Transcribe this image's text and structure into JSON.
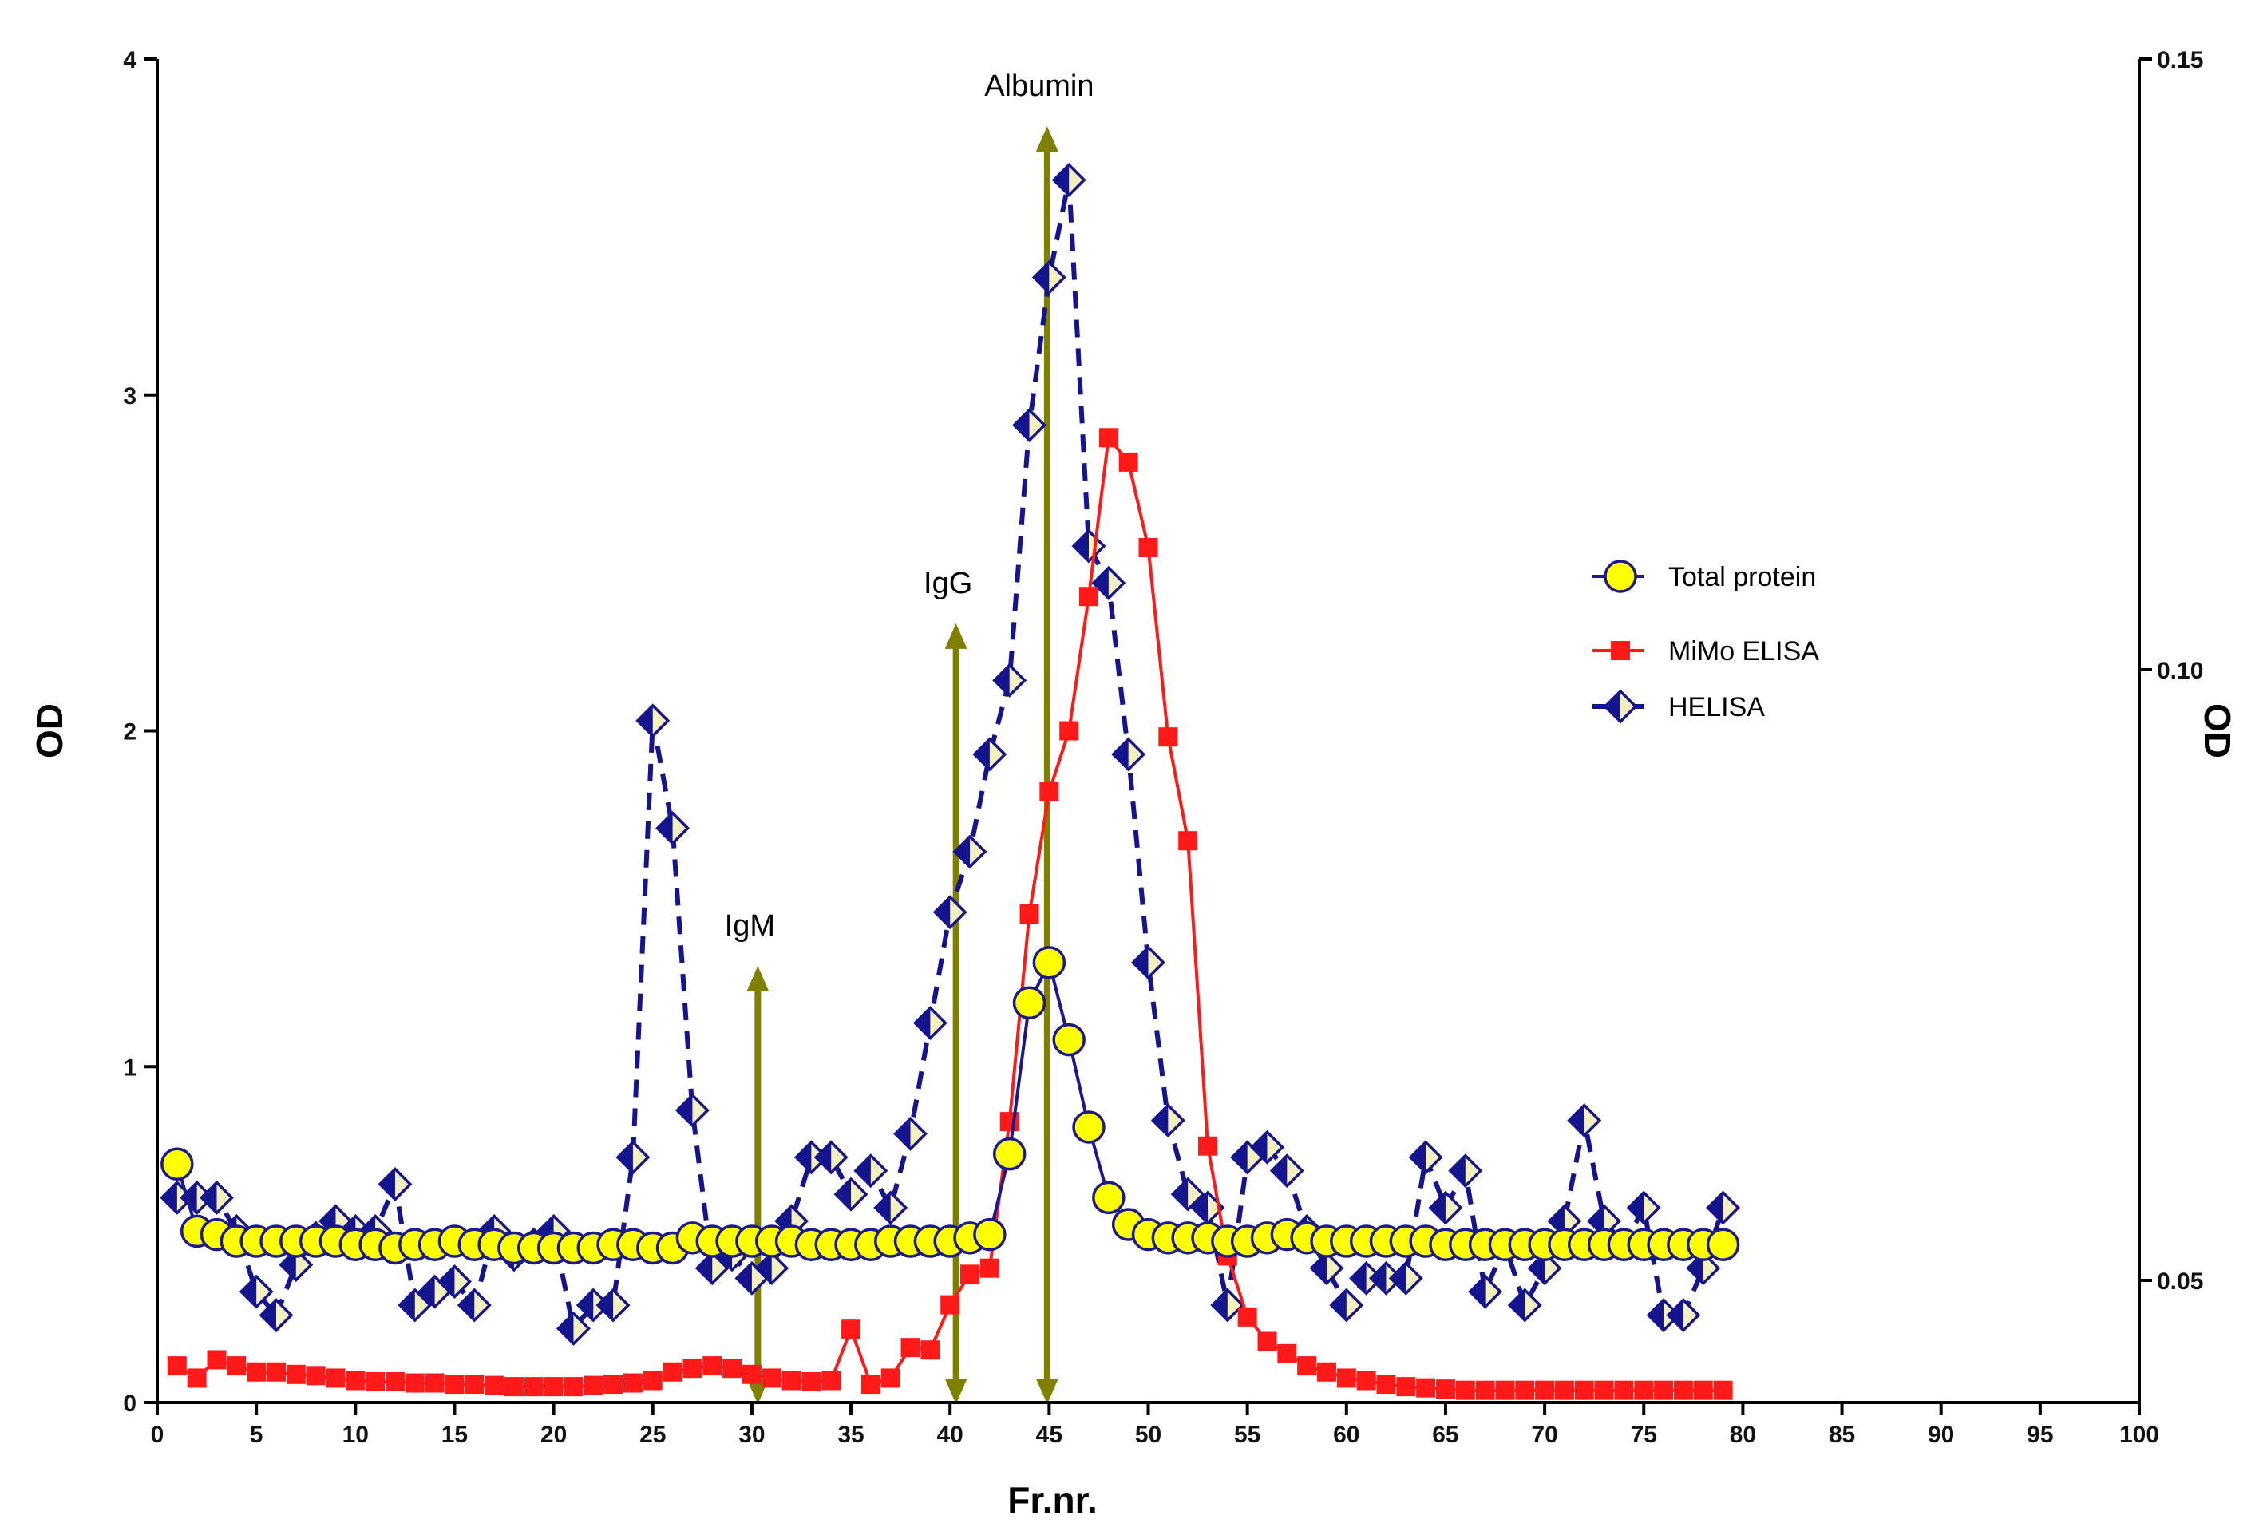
{
  "chart_data": {
    "type": "line",
    "title": "",
    "xlabel": "Fr.nr.",
    "ylabel": "OD",
    "y2label": "OD",
    "xlim": [
      0,
      100
    ],
    "ylim": [
      0,
      4
    ],
    "y2lim": [
      0.04,
      0.15
    ],
    "x_ticks": [
      0,
      5,
      10,
      15,
      20,
      25,
      30,
      35,
      40,
      45,
      50,
      55,
      60,
      65,
      70,
      75,
      80,
      85,
      90,
      95,
      100
    ],
    "y_ticks": [
      0,
      1,
      2,
      3,
      4
    ],
    "y2_ticks": [
      0.05,
      0.1,
      0.15
    ],
    "y2_tick_labels": [
      "0.05",
      "0.10",
      "0.15"
    ],
    "legend_position": "right-middle",
    "series": [
      {
        "name": "Total protein",
        "axis": "left",
        "color": "#ffff00",
        "edge_color": "#1a1a8c",
        "marker": "circle",
        "line": "solid",
        "x": [
          1,
          2,
          3,
          4,
          5,
          6,
          7,
          8,
          9,
          10,
          11,
          12,
          13,
          14,
          15,
          16,
          17,
          18,
          19,
          20,
          21,
          22,
          23,
          24,
          25,
          26,
          27,
          28,
          29,
          30,
          31,
          32,
          33,
          34,
          35,
          36,
          37,
          38,
          39,
          40,
          41,
          42,
          43,
          44,
          45,
          46,
          47,
          48,
          49,
          50,
          51,
          52,
          53,
          54,
          55,
          56,
          57,
          58,
          59,
          60,
          61,
          62,
          63,
          64,
          65,
          66,
          67,
          68,
          69,
          70,
          71,
          72,
          73,
          74,
          75,
          76,
          77,
          78,
          79
        ],
        "values": [
          0.71,
          0.51,
          0.5,
          0.48,
          0.48,
          0.48,
          0.48,
          0.48,
          0.48,
          0.47,
          0.47,
          0.46,
          0.47,
          0.47,
          0.48,
          0.47,
          0.47,
          0.46,
          0.46,
          0.46,
          0.46,
          0.46,
          0.47,
          0.47,
          0.46,
          0.46,
          0.49,
          0.48,
          0.48,
          0.48,
          0.48,
          0.48,
          0.47,
          0.47,
          0.47,
          0.47,
          0.48,
          0.48,
          0.48,
          0.48,
          0.49,
          0.5,
          0.74,
          1.19,
          1.31,
          1.08,
          0.82,
          0.61,
          0.53,
          0.5,
          0.49,
          0.49,
          0.49,
          0.48,
          0.48,
          0.49,
          0.5,
          0.49,
          0.48,
          0.48,
          0.48,
          0.48,
          0.48,
          0.48,
          0.47,
          0.47,
          0.47,
          0.47,
          0.47,
          0.47,
          0.47,
          0.47,
          0.47,
          0.47,
          0.47,
          0.47,
          0.47,
          0.47,
          0.47
        ]
      },
      {
        "name": "MiMo ELISA",
        "axis": "right",
        "color": "#ff1a1a",
        "marker": "square",
        "line": "solid",
        "x": [
          1,
          2,
          3,
          4,
          5,
          6,
          7,
          8,
          9,
          10,
          11,
          12,
          13,
          14,
          15,
          16,
          17,
          18,
          19,
          20,
          21,
          22,
          23,
          24,
          25,
          26,
          27,
          28,
          29,
          30,
          31,
          32,
          33,
          34,
          35,
          36,
          37,
          38,
          39,
          40,
          41,
          42,
          43,
          44,
          45,
          46,
          47,
          48,
          49,
          50,
          51,
          52,
          53,
          54,
          55,
          56,
          57,
          58,
          59,
          60,
          61,
          62,
          63,
          64,
          65,
          66,
          67,
          68,
          69,
          70,
          71,
          72,
          73,
          74,
          75,
          76,
          77,
          78,
          79
        ],
        "values": [
          0.043,
          0.042,
          0.0435,
          0.043,
          0.0425,
          0.0425,
          0.0423,
          0.0422,
          0.042,
          0.0418,
          0.0417,
          0.0417,
          0.0416,
          0.0416,
          0.0415,
          0.0415,
          0.0414,
          0.0413,
          0.0413,
          0.0413,
          0.0413,
          0.0414,
          0.0415,
          0.0416,
          0.0418,
          0.0425,
          0.0428,
          0.043,
          0.0428,
          0.0423,
          0.042,
          0.0418,
          0.0417,
          0.0418,
          0.046,
          0.0415,
          0.042,
          0.0445,
          0.0443,
          0.048,
          0.0505,
          0.051,
          0.063,
          0.08,
          0.09,
          0.095,
          0.106,
          0.119,
          0.117,
          0.11,
          0.0945,
          0.086,
          0.061,
          0.052,
          0.047,
          0.045,
          0.044,
          0.043,
          0.0425,
          0.042,
          0.0418,
          0.0415,
          0.0413,
          0.0412,
          0.0411,
          0.041,
          0.041,
          0.041,
          0.041,
          0.041,
          0.041,
          0.041,
          0.041,
          0.041,
          0.041,
          0.041,
          0.041,
          0.041,
          0.041
        ]
      },
      {
        "name": "HELISA",
        "axis": "left",
        "color": "#14148c",
        "marker": "diamond",
        "line": "dashed",
        "x": [
          1,
          2,
          3,
          4,
          5,
          6,
          7,
          8,
          9,
          10,
          11,
          12,
          13,
          14,
          15,
          16,
          17,
          18,
          19,
          20,
          21,
          22,
          23,
          24,
          25,
          26,
          27,
          28,
          29,
          30,
          31,
          32,
          33,
          34,
          35,
          36,
          37,
          38,
          39,
          40,
          41,
          42,
          43,
          44,
          45,
          46,
          47,
          48,
          49,
          50,
          51,
          52,
          53,
          54,
          55,
          56,
          57,
          58,
          59,
          60,
          61,
          62,
          63,
          64,
          65,
          66,
          67,
          68,
          69,
          70,
          71,
          72,
          73,
          74,
          75,
          76,
          77,
          78,
          79
        ],
        "values": [
          0.61,
          0.61,
          0.61,
          0.51,
          0.33,
          0.26,
          0.41,
          0.49,
          0.54,
          0.51,
          0.51,
          0.65,
          0.29,
          0.33,
          0.36,
          0.29,
          0.51,
          0.44,
          0.47,
          0.51,
          0.22,
          0.29,
          0.29,
          0.73,
          2.03,
          1.71,
          0.87,
          0.4,
          0.44,
          0.37,
          0.4,
          0.54,
          0.73,
          0.73,
          0.62,
          0.69,
          0.58,
          0.8,
          1.13,
          1.46,
          1.64,
          1.93,
          2.15,
          2.91,
          3.35,
          3.64,
          2.55,
          2.44,
          1.93,
          1.31,
          0.84,
          0.62,
          0.58,
          0.29,
          0.73,
          0.76,
          0.69,
          0.51,
          0.4,
          0.29,
          0.37,
          0.37,
          0.37,
          0.73,
          0.58,
          0.69,
          0.33,
          0.47,
          0.29,
          0.4,
          0.54,
          0.84,
          0.54,
          0.47,
          0.58,
          0.26,
          0.26,
          0.4,
          0.58
        ]
      }
    ],
    "annotations": [
      {
        "label": "IgM",
        "x": 30.3,
        "arrow_top": 1.3
      },
      {
        "label": "IgG",
        "x": 40.3,
        "arrow_top": 2.32
      },
      {
        "label": "Albumin",
        "x": 44.9,
        "arrow_top": 3.8
      }
    ],
    "arrow_color": "#808000"
  }
}
